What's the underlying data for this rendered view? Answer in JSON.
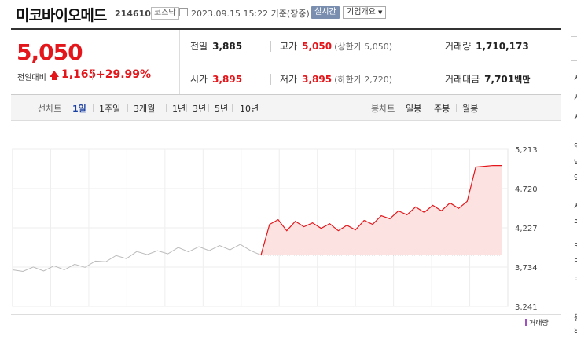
{
  "header": {
    "name": "미코바이오메드",
    "code": "214610",
    "market": "코스닥",
    "datetime": "2023.09.15 15:22 기준(장중)",
    "realtime_label": "실시간",
    "info_label": "기업개요"
  },
  "quote": {
    "price": "5,050",
    "change_label": "전일대비",
    "change": "1,165",
    "change_pct": "+29.99%",
    "prev_close_label": "전일",
    "prev_close": "3,885",
    "high_label": "고가",
    "high": "5,050",
    "upper_limit": "(상한가 5,050)",
    "volume_label": "거래량",
    "volume": "1,710,173",
    "open_label": "시가",
    "open": "3,895",
    "low_label": "저가",
    "low": "3,895",
    "lower_limit": "(하한가 2,720)",
    "value_label": "거래대금",
    "value": "7,701",
    "value_unit": "백만"
  },
  "tabs": {
    "line_label": "선차트",
    "periods": [
      "1일",
      "1주일",
      "3개월",
      "1년",
      "3년",
      "5년",
      "10년"
    ],
    "candle_label": "봉차트",
    "candles": [
      "일봉",
      "주봉",
      "월봉"
    ]
  },
  "right_panel": {
    "chars": [
      "시",
      "시",
      "시",
      "9",
      "9",
      "9",
      "서",
      "5",
      "R",
      "R",
      "비",
      "등",
      "8"
    ]
  },
  "legend": {
    "volume": "거래량"
  },
  "colors": {
    "up": "#e3171b",
    "prev": "#bbbbbb",
    "fill": "#fde2e2",
    "active_tab": "#1a3fa3"
  },
  "chart_data": {
    "type": "line",
    "ylim": [
      3241,
      5213
    ],
    "yticks": [
      5213,
      4720,
      4227,
      3734,
      3241
    ],
    "reference_line": 3885,
    "series": [
      {
        "values": [
          3700,
          3710,
          3705,
          3715,
          3720,
          3730,
          3740,
          3760,
          3780,
          3830,
          3850,
          3870,
          3900,
          3920,
          3910,
          3930,
          3950,
          3955,
          3960,
          3970,
          3975,
          3980,
          3990,
          3970,
          3885
        ]
      },
      {
        "values": [
          3885,
          4270,
          4290,
          4230,
          4270,
          4280,
          4250,
          4260,
          4240,
          4230,
          4220,
          4240,
          4280,
          4310,
          4340,
          4380,
          4400,
          4430,
          4450,
          4460,
          4470,
          4480,
          4500,
          4510,
          4520,
          4990,
          5000,
          5010,
          5010
        ]
      }
    ]
  }
}
